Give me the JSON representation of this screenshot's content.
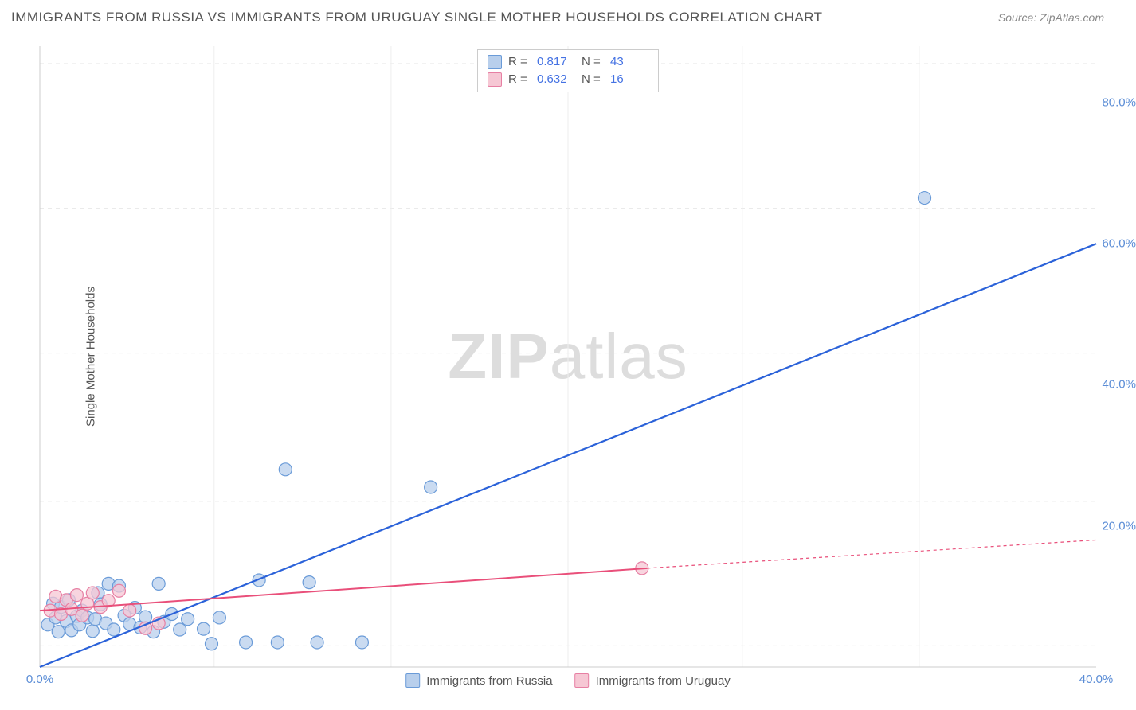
{
  "title": "IMMIGRANTS FROM RUSSIA VS IMMIGRANTS FROM URUGUAY SINGLE MOTHER HOUSEHOLDS CORRELATION CHART",
  "source_prefix": "Source: ",
  "source_name": "ZipAtlas.com",
  "ylabel": "Single Mother Households",
  "watermark_bold": "ZIP",
  "watermark_rest": "atlas",
  "chart": {
    "type": "scatter",
    "xlim": [
      0,
      40
    ],
    "ylim": [
      0,
      88
    ],
    "xtick_labels": [
      "0.0%",
      "40.0%"
    ],
    "xtick_positions": [
      0,
      40
    ],
    "ytick_labels": [
      "20.0%",
      "40.0%",
      "60.0%",
      "80.0%"
    ],
    "ytick_positions": [
      20,
      40,
      60,
      80
    ],
    "xgrid_positions": [
      6.6,
      13.3,
      20,
      26.6,
      33.3
    ],
    "ygrid_positions": [
      3,
      23.5,
      44.5,
      65,
      85.5
    ],
    "background_color": "#ffffff",
    "grid_color": "#dddddd",
    "axis_color": "#cccccc",
    "tick_color": "#5b8dd6",
    "label_color": "#555555",
    "title_fontsize": 17,
    "label_fontsize": 15,
    "tick_fontsize": 15,
    "marker_radius": 8,
    "marker_stroke_width": 1.2,
    "series": [
      {
        "name": "Immigrants from Russia",
        "color_fill": "#b8cfec",
        "color_stroke": "#6a9bd8",
        "line_color": "#2b62d9",
        "line_width": 2.2,
        "line_dash": "none",
        "r_label": "R  =",
        "r_value": "0.817",
        "n_label": "N  =",
        "n_value": "43",
        "trend": {
          "x1": 0,
          "y1": 0,
          "x2": 40,
          "y2": 60
        },
        "points": [
          [
            0.3,
            6.0
          ],
          [
            0.5,
            9.0
          ],
          [
            0.6,
            7.0
          ],
          [
            0.7,
            5.0
          ],
          [
            0.8,
            8.5
          ],
          [
            1.0,
            6.5
          ],
          [
            1.1,
            9.5
          ],
          [
            1.2,
            5.2
          ],
          [
            1.4,
            7.2
          ],
          [
            1.5,
            6.0
          ],
          [
            1.6,
            8.0
          ],
          [
            1.8,
            7.0
          ],
          [
            2.0,
            5.1
          ],
          [
            2.1,
            6.8
          ],
          [
            2.2,
            10.5
          ],
          [
            2.3,
            8.9
          ],
          [
            2.5,
            6.2
          ],
          [
            2.6,
            11.8
          ],
          [
            2.8,
            5.3
          ],
          [
            3.0,
            11.5
          ],
          [
            3.2,
            7.3
          ],
          [
            3.4,
            6.1
          ],
          [
            3.6,
            8.4
          ],
          [
            3.8,
            5.6
          ],
          [
            4.0,
            7.1
          ],
          [
            4.3,
            5.0
          ],
          [
            4.5,
            11.8
          ],
          [
            4.7,
            6.4
          ],
          [
            5.0,
            7.5
          ],
          [
            5.3,
            5.3
          ],
          [
            5.6,
            6.8
          ],
          [
            6.2,
            5.4
          ],
          [
            6.5,
            3.3
          ],
          [
            6.8,
            7.0
          ],
          [
            7.8,
            3.5
          ],
          [
            8.3,
            12.3
          ],
          [
            9.0,
            3.5
          ],
          [
            9.3,
            28.0
          ],
          [
            10.2,
            12.0
          ],
          [
            10.5,
            3.5
          ],
          [
            12.2,
            3.5
          ],
          [
            14.8,
            25.5
          ],
          [
            33.5,
            66.5
          ]
        ]
      },
      {
        "name": "Immigrants from Uruguay",
        "color_fill": "#f6c7d4",
        "color_stroke": "#e77fa3",
        "line_color": "#e94f7a",
        "line_width": 2.0,
        "line_dash": "none",
        "dash_extension": "4 4",
        "r_label": "R  =",
        "r_value": "0.632",
        "n_label": "N  =",
        "n_value": "16",
        "trend": {
          "x1": 0,
          "y1": 8,
          "x2": 23,
          "y2": 14
        },
        "trend_ext": {
          "x1": 23,
          "y1": 14,
          "x2": 40,
          "y2": 18
        },
        "points": [
          [
            0.4,
            8.0
          ],
          [
            0.6,
            10.0
          ],
          [
            0.8,
            7.5
          ],
          [
            1.0,
            9.5
          ],
          [
            1.2,
            8.2
          ],
          [
            1.4,
            10.2
          ],
          [
            1.6,
            7.3
          ],
          [
            1.8,
            9.0
          ],
          [
            2.0,
            10.5
          ],
          [
            2.3,
            8.5
          ],
          [
            2.6,
            9.4
          ],
          [
            3.0,
            10.8
          ],
          [
            3.4,
            8.0
          ],
          [
            4.0,
            5.5
          ],
          [
            4.5,
            6.2
          ],
          [
            22.8,
            14.0
          ]
        ]
      }
    ]
  },
  "bottom_legend": [
    {
      "swatch_fill": "#b8cfec",
      "swatch_stroke": "#6a9bd8",
      "label": "Immigrants from Russia"
    },
    {
      "swatch_fill": "#f6c7d4",
      "swatch_stroke": "#e77fa3",
      "label": "Immigrants from Uruguay"
    }
  ]
}
